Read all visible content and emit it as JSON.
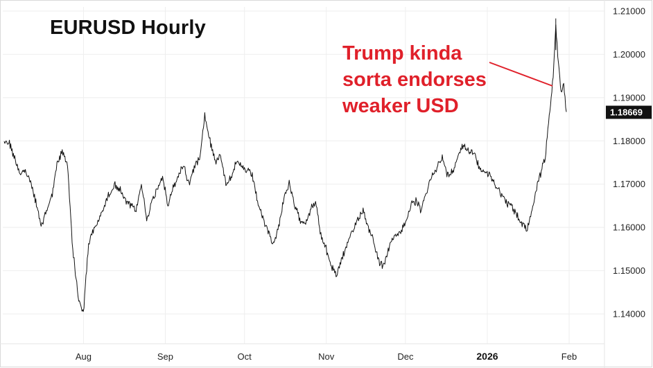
{
  "chart_data": {
    "type": "line",
    "title": "EURUSD Hourly",
    "xlabel": "",
    "ylabel": "",
    "x_ticks": [
      {
        "label": "Aug",
        "bold": false
      },
      {
        "label": "Sep",
        "bold": false
      },
      {
        "label": "Oct",
        "bold": false
      },
      {
        "label": "Nov",
        "bold": false
      },
      {
        "label": "Dec",
        "bold": false
      },
      {
        "label": "2026",
        "bold": true
      },
      {
        "label": "Feb",
        "bold": false
      }
    ],
    "x_range": [
      "2025-07-03",
      "2026-02-06"
    ],
    "y_ticks": [
      "1.14000",
      "1.15000",
      "1.16000",
      "1.17000",
      "1.18000",
      "1.19000",
      "1.20000",
      "1.21000"
    ],
    "ylim": [
      1.1365,
      1.2115
    ],
    "grid": true,
    "current_price": "1.18669",
    "series": [
      {
        "values": [
          [
            "2025-07-03",
            1.18
          ],
          [
            "2025-07-05",
            1.1795
          ],
          [
            "2025-07-07",
            1.176
          ],
          [
            "2025-07-09",
            1.1725
          ],
          [
            "2025-07-11",
            1.173
          ],
          [
            "2025-07-13",
            1.1705
          ],
          [
            "2025-07-15",
            1.166
          ],
          [
            "2025-07-17",
            1.16
          ],
          [
            "2025-07-19",
            1.164
          ],
          [
            "2025-07-21",
            1.167
          ],
          [
            "2025-07-23",
            1.1745
          ],
          [
            "2025-07-25",
            1.1775
          ],
          [
            "2025-07-27",
            1.1745
          ],
          [
            "2025-07-29",
            1.155
          ],
          [
            "2025-07-31",
            1.144
          ],
          [
            "2025-08-02",
            1.14
          ],
          [
            "2025-08-04",
            1.1565
          ],
          [
            "2025-08-06",
            1.1595
          ],
          [
            "2025-08-08",
            1.162
          ],
          [
            "2025-08-10",
            1.165
          ],
          [
            "2025-08-12",
            1.168
          ],
          [
            "2025-08-14",
            1.17
          ],
          [
            "2025-08-16",
            1.1685
          ],
          [
            "2025-08-18",
            1.166
          ],
          [
            "2025-08-20",
            1.165
          ],
          [
            "2025-08-22",
            1.164
          ],
          [
            "2025-08-24",
            1.17
          ],
          [
            "2025-08-26",
            1.162
          ],
          [
            "2025-08-28",
            1.166
          ],
          [
            "2025-08-30",
            1.169
          ],
          [
            "2025-09-01",
            1.172
          ],
          [
            "2025-09-03",
            1.165
          ],
          [
            "2025-09-05",
            1.169
          ],
          [
            "2025-09-07",
            1.172
          ],
          [
            "2025-09-09",
            1.1745
          ],
          [
            "2025-09-11",
            1.17
          ],
          [
            "2025-09-13",
            1.174
          ],
          [
            "2025-09-15",
            1.176
          ],
          [
            "2025-09-17",
            1.186
          ],
          [
            "2025-09-19",
            1.18
          ],
          [
            "2025-09-21",
            1.175
          ],
          [
            "2025-09-23",
            1.177
          ],
          [
            "2025-09-25",
            1.17
          ],
          [
            "2025-09-27",
            1.172
          ],
          [
            "2025-09-29",
            1.175
          ],
          [
            "2025-10-01",
            1.174
          ],
          [
            "2025-10-03",
            1.173
          ],
          [
            "2025-10-05",
            1.172
          ],
          [
            "2025-10-07",
            1.166
          ],
          [
            "2025-10-09",
            1.162
          ],
          [
            "2025-10-11",
            1.159
          ],
          [
            "2025-10-13",
            1.156
          ],
          [
            "2025-10-15",
            1.16
          ],
          [
            "2025-10-17",
            1.167
          ],
          [
            "2025-10-19",
            1.17
          ],
          [
            "2025-10-21",
            1.165
          ],
          [
            "2025-10-23",
            1.162
          ],
          [
            "2025-10-25",
            1.161
          ],
          [
            "2025-10-27",
            1.164
          ],
          [
            "2025-10-29",
            1.166
          ],
          [
            "2025-10-31",
            1.158
          ],
          [
            "2025-11-02",
            1.155
          ],
          [
            "2025-11-04",
            1.151
          ],
          [
            "2025-11-06",
            1.149
          ],
          [
            "2025-11-08",
            1.153
          ],
          [
            "2025-11-10",
            1.156
          ],
          [
            "2025-11-12",
            1.159
          ],
          [
            "2025-11-14",
            1.162
          ],
          [
            "2025-11-16",
            1.164
          ],
          [
            "2025-11-18",
            1.16
          ],
          [
            "2025-11-20",
            1.157
          ],
          [
            "2025-11-22",
            1.152
          ],
          [
            "2025-11-24",
            1.151
          ],
          [
            "2025-11-26",
            1.156
          ],
          [
            "2025-11-28",
            1.158
          ],
          [
            "2025-11-30",
            1.159
          ],
          [
            "2025-12-02",
            1.161
          ],
          [
            "2025-12-04",
            1.165
          ],
          [
            "2025-12-06",
            1.166
          ],
          [
            "2025-12-08",
            1.164
          ],
          [
            "2025-12-10",
            1.168
          ],
          [
            "2025-12-12",
            1.172
          ],
          [
            "2025-12-14",
            1.174
          ],
          [
            "2025-12-16",
            1.176
          ],
          [
            "2025-12-18",
            1.172
          ],
          [
            "2025-12-20",
            1.173
          ],
          [
            "2025-12-22",
            1.177
          ],
          [
            "2025-12-24",
            1.179
          ],
          [
            "2025-12-26",
            1.178
          ],
          [
            "2025-12-28",
            1.177
          ],
          [
            "2025-12-30",
            1.174
          ],
          [
            "2026-01-01",
            1.173
          ],
          [
            "2026-01-03",
            1.172
          ],
          [
            "2026-01-05",
            1.17
          ],
          [
            "2026-01-07",
            1.168
          ],
          [
            "2026-01-09",
            1.166
          ],
          [
            "2026-01-11",
            1.165
          ],
          [
            "2026-01-13",
            1.163
          ],
          [
            "2026-01-15",
            1.161
          ],
          [
            "2026-01-17",
            1.1595
          ],
          [
            "2026-01-19",
            1.164
          ],
          [
            "2026-01-21",
            1.17
          ],
          [
            "2026-01-23",
            1.174
          ],
          [
            "2026-01-24",
            1.176
          ],
          [
            "2026-01-25",
            1.183
          ],
          [
            "2026-01-26",
            1.188
          ],
          [
            "2026-01-27",
            1.195
          ],
          [
            "2026-01-28",
            1.206
          ],
          [
            "2026-01-29",
            1.198
          ],
          [
            "2026-01-30",
            1.192
          ],
          [
            "2026-01-31",
            1.193
          ],
          [
            "2026-02-01",
            1.1867
          ]
        ]
      }
    ],
    "annotation": {
      "lines": [
        "Trump kinda",
        "sorta endorses",
        "weaker USD"
      ]
    },
    "colors": {
      "line": "#111111",
      "annotation": "#e0202a",
      "price_label_bg": "#111111",
      "grid": "#eeeeee"
    }
  }
}
